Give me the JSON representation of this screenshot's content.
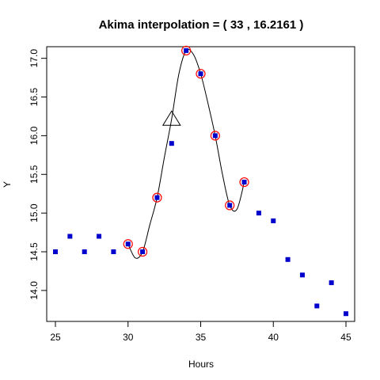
{
  "chart_data": {
    "type": "scatter",
    "title": "Akima interpolation = ( 33 , 16.2161 )",
    "xlabel": "Hours",
    "ylabel": "Y",
    "xlim": [
      24.4,
      45.6
    ],
    "ylim": [
      13.6,
      17.15
    ],
    "x_ticks": [
      25,
      30,
      35,
      40,
      45
    ],
    "x_tick_labels": [
      "25",
      "30",
      "35",
      "40",
      "45"
    ],
    "y_ticks": [
      14.0,
      14.5,
      15.0,
      15.5,
      16.0,
      16.5,
      17.0
    ],
    "y_tick_labels": [
      "14.0",
      "14.5",
      "15.0",
      "15.5",
      "16.0",
      "16.5",
      "17.0"
    ],
    "series": [
      {
        "marker": "filled-square",
        "color": "#0000cc",
        "x": [
          25,
          26,
          27,
          28,
          29,
          30,
          31,
          32,
          33,
          34,
          35,
          36,
          37,
          38,
          39,
          40,
          41,
          42,
          43,
          44,
          45
        ],
        "y": [
          14.5,
          14.7,
          14.5,
          14.7,
          14.5,
          14.6,
          14.5,
          15.2,
          15.9,
          17.1,
          16.8,
          16.0,
          15.1,
          15.4,
          15.0,
          14.9,
          14.4,
          14.2,
          13.8,
          14.1,
          13.7
        ]
      }
    ],
    "highlighted": {
      "marker": "open-circle",
      "color": "#ff0000",
      "x": [
        30,
        31,
        32,
        34,
        35,
        36,
        37,
        38
      ],
      "y": [
        14.6,
        14.5,
        15.2,
        17.1,
        16.8,
        16.0,
        15.1,
        15.4
      ]
    },
    "interpolation_curve": {
      "color": "#000000",
      "x": [
        30,
        30.5,
        31,
        31.5,
        32,
        32.5,
        33,
        33.5,
        34,
        34.5,
        35,
        35.5,
        36,
        36.5,
        37,
        37.5,
        38
      ],
      "y": [
        14.6,
        14.42,
        14.5,
        14.85,
        15.2,
        15.72,
        16.2161,
        16.8,
        17.1,
        17.05,
        16.8,
        16.42,
        16.0,
        15.5,
        15.1,
        15.05,
        15.4
      ]
    },
    "interpolated_point": {
      "marker": "open-triangle",
      "x": 33,
      "y": 16.2161
    }
  }
}
